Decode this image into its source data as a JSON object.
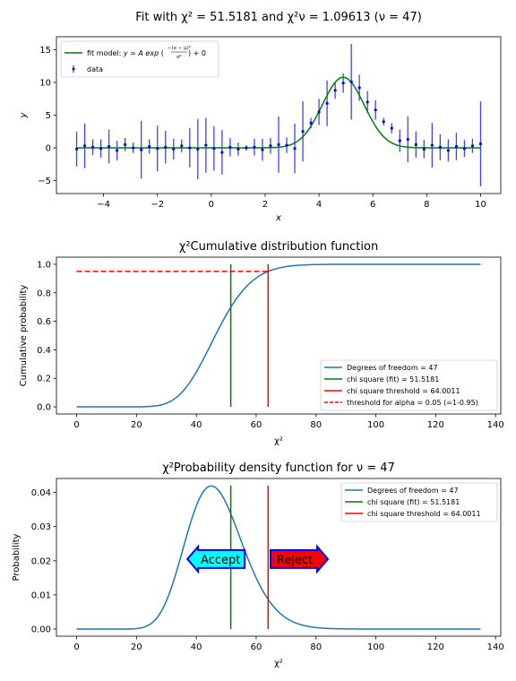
{
  "chart_data": [
    {
      "type": "scatter",
      "title": "Fit with χ² = 51.5181 and χ²ν = 1.09613 (ν = 47)",
      "xlabel": "x",
      "ylabel": "y",
      "xlim": [
        -5.75,
        10.75
      ],
      "ylim": [
        -7,
        17
      ],
      "xticks": [
        -4,
        -2,
        0,
        2,
        4,
        6,
        8,
        10
      ],
      "yticks": [
        -5,
        0,
        5,
        10,
        15
      ],
      "colors": {
        "data": "#0000ff",
        "fit": "#008000"
      },
      "fit": {
        "A": 10.8,
        "mu": 4.9,
        "sigma": 0.78,
        "offset": 0
      },
      "series": [
        {
          "name": "data",
          "x": [
            -5.0,
            -4.7,
            -4.4,
            -4.1,
            -3.8,
            -3.5,
            -3.2,
            -2.9,
            -2.6,
            -2.3,
            -2.0,
            -1.7,
            -1.4,
            -1.1,
            -0.8,
            -0.5,
            -0.2,
            0.1,
            0.4,
            0.7,
            1.0,
            1.3,
            1.6,
            1.9,
            2.2,
            2.5,
            2.8,
            3.1,
            3.4,
            3.7,
            4.0,
            4.3,
            4.6,
            4.9,
            5.2,
            5.5,
            5.8,
            6.1,
            6.4,
            6.7,
            7.0,
            7.3,
            7.6,
            7.9,
            8.2,
            8.5,
            8.8,
            9.1,
            9.4,
            9.7,
            10.0
          ],
          "y": [
            -0.2,
            0.3,
            0.1,
            -0.1,
            0.2,
            -0.4,
            0.5,
            0.0,
            -0.3,
            0.2,
            -0.1,
            0.1,
            -0.2,
            0.3,
            0.0,
            -0.2,
            0.4,
            -0.1,
            -0.7,
            0.1,
            -0.2,
            0.0,
            0.1,
            -0.3,
            0.3,
            0.5,
            0.4,
            -0.1,
            2.5,
            3.8,
            5.5,
            6.8,
            8.8,
            9.9,
            10.1,
            9.2,
            7.0,
            5.8,
            4.0,
            3.0,
            1.1,
            1.3,
            0.5,
            -0.2,
            0.4,
            0.1,
            -0.4,
            0.2,
            -0.1,
            0.3,
            0.6
          ],
          "yerr": [
            2.7,
            3.4,
            1.2,
            1.4,
            2.6,
            1.5,
            1.0,
            0.8,
            4.4,
            1.1,
            3.5,
            2.5,
            1.6,
            1.0,
            3.0,
            4.6,
            4.2,
            3.4,
            3.4,
            1.4,
            1.0,
            0.4,
            1.3,
            1.7,
            1.2,
            4.3,
            1.2,
            3.8,
            4.6,
            0.8,
            2.0,
            3.5,
            1.3,
            1.5,
            5.8,
            2.0,
            1.7,
            1.5,
            0.6,
            0.8,
            1.7,
            3.5,
            2.0,
            1.4,
            3.4,
            2.0,
            1.7,
            2.1,
            1.3,
            1.1,
            6.5
          ]
        }
      ],
      "legend": {
        "position": "top-left",
        "fit_label_prefix": "fit model: ",
        "fit_label_eq": "y = A exp",
        "fit_label_num": "−(x − μ)²",
        "fit_label_den": "σ²",
        "fit_label_suffix": " + 0",
        "data_label": "data"
      }
    },
    {
      "type": "line",
      "title": "χ²Cumulative distribution function",
      "xlabel": "χ²",
      "ylabel": "Cumulative probability",
      "xlim": [
        -6.75,
        141.75
      ],
      "ylim": [
        -0.05,
        1.05
      ],
      "xticks": [
        0,
        20,
        40,
        60,
        80,
        100,
        120,
        140
      ],
      "yticks": [
        0.0,
        0.2,
        0.4,
        0.6,
        0.8,
        1.0
      ],
      "ytick_labels": [
        "0.0",
        "0.2",
        "0.4",
        "0.6",
        "0.8",
        "1.0"
      ],
      "dof": 47,
      "curve_range": [
        0,
        135
      ],
      "chi_square_fit": 51.5181,
      "chi_square_threshold": 64.0011,
      "alpha_level": 0.95,
      "colors": {
        "curve": "#1f77b4",
        "fit": "#008000",
        "threshold": "#ff0000"
      },
      "legend": {
        "position": "bottom-right",
        "items": [
          "Degrees of freedom = 47",
          "chi square (fit) = 51.5181",
          "chi square threshold = 64.0011",
          "threshold for alpha = 0.05 (=1-0.95)"
        ]
      }
    },
    {
      "type": "line",
      "title": "χ²Probability density function for ν = 47",
      "xlabel": "χ²",
      "ylabel": "Probability",
      "xlim": [
        -6.75,
        141.75
      ],
      "ylim": [
        -0.0021,
        0.0441
      ],
      "xticks": [
        0,
        20,
        40,
        60,
        80,
        100,
        120,
        140
      ],
      "yticks": [
        0.0,
        0.01,
        0.02,
        0.03,
        0.04
      ],
      "ytick_labels": [
        "0.00",
        "0.01",
        "0.02",
        "0.03",
        "0.04"
      ],
      "dof": 47,
      "curve_range": [
        0,
        135
      ],
      "chi_square_fit": 51.5181,
      "chi_square_threshold": 64.0011,
      "colors": {
        "curve": "#1f77b4",
        "fit": "#008000",
        "threshold": "#ff0000",
        "accept": "#00ffff",
        "reject": "#ff0000",
        "arrow_edge": "#0000ff"
      },
      "annotations": [
        {
          "text": "Accept",
          "x": 47.5,
          "y": 0.0205,
          "direction": "left"
        },
        {
          "text": "Reject",
          "x": 73.5,
          "y": 0.0205,
          "direction": "right"
        }
      ],
      "legend": {
        "position": "top-right",
        "items": [
          "Degrees of freedom = 47",
          "chi square (fit) = 51.5181",
          "chi square threshold = 64.0011"
        ]
      }
    }
  ]
}
